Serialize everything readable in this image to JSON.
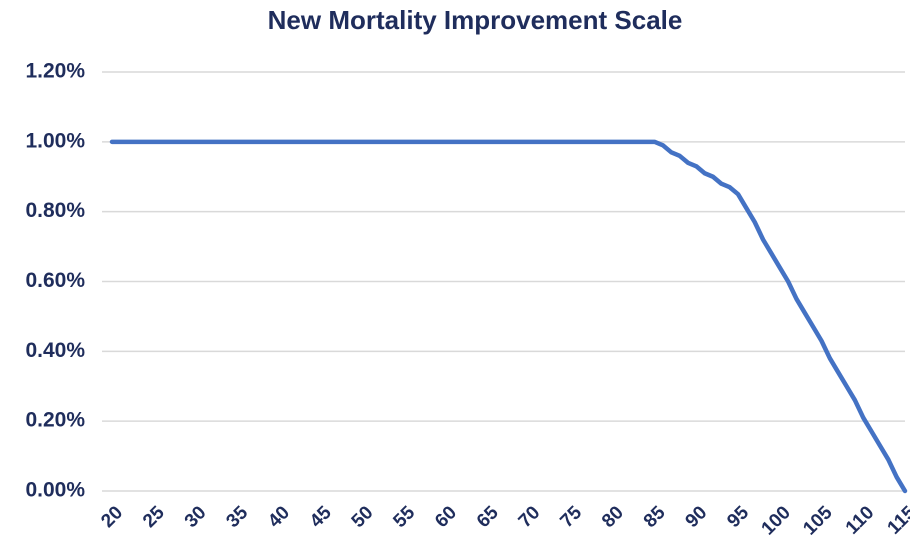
{
  "chart_data": {
    "type": "line",
    "title": "New Mortality Improvement Scale",
    "x": [
      20,
      21,
      22,
      23,
      24,
      25,
      26,
      27,
      28,
      29,
      30,
      31,
      32,
      33,
      34,
      35,
      36,
      37,
      38,
      39,
      40,
      41,
      42,
      43,
      44,
      45,
      46,
      47,
      48,
      49,
      50,
      51,
      52,
      53,
      54,
      55,
      56,
      57,
      58,
      59,
      60,
      61,
      62,
      63,
      64,
      65,
      66,
      67,
      68,
      69,
      70,
      71,
      72,
      73,
      74,
      75,
      76,
      77,
      78,
      79,
      80,
      81,
      82,
      83,
      84,
      85,
      86,
      87,
      88,
      89,
      90,
      91,
      92,
      93,
      94,
      95,
      96,
      97,
      98,
      99,
      100,
      101,
      102,
      103,
      104,
      105,
      106,
      107,
      108,
      109,
      110,
      111,
      112,
      113,
      114,
      115
    ],
    "values": [
      1,
      1,
      1,
      1,
      1,
      1,
      1,
      1,
      1,
      1,
      1,
      1,
      1,
      1,
      1,
      1,
      1,
      1,
      1,
      1,
      1,
      1,
      1,
      1,
      1,
      1,
      1,
      1,
      1,
      1,
      1,
      1,
      1,
      1,
      1,
      1,
      1,
      1,
      1,
      1,
      1,
      1,
      1,
      1,
      1,
      1,
      1,
      1,
      1,
      1,
      1,
      1,
      1,
      1,
      1,
      1,
      1,
      1,
      1,
      1,
      1,
      1,
      1,
      1,
      1,
      1,
      0.99,
      0.97,
      0.96,
      0.94,
      0.93,
      0.91,
      0.9,
      0.88,
      0.87,
      0.85,
      0.81,
      0.77,
      0.72,
      0.68,
      0.64,
      0.6,
      0.55,
      0.51,
      0.47,
      0.43,
      0.38,
      0.34,
      0.3,
      0.26,
      0.21,
      0.17,
      0.13,
      0.09,
      0.04,
      0.0
    ],
    "color": "#4472c4",
    "xlim": [
      20,
      115
    ],
    "xticks": [
      20,
      25,
      30,
      35,
      40,
      45,
      50,
      55,
      60,
      65,
      70,
      75,
      80,
      85,
      90,
      95,
      100,
      105,
      110,
      115
    ],
    "ylim": [
      0,
      1.2
    ],
    "yticks": [
      {
        "value": 0,
        "label": "0.00%"
      },
      {
        "value": 0.2,
        "label": "0.20%"
      },
      {
        "value": 0.4,
        "label": "0.40%"
      },
      {
        "value": 0.6,
        "label": "0.60%"
      },
      {
        "value": 0.8,
        "label": "0.80%"
      },
      {
        "value": 1.0,
        "label": "1.00%"
      },
      {
        "value": 1.2,
        "label": "1.20%"
      }
    ],
    "grid": true
  }
}
